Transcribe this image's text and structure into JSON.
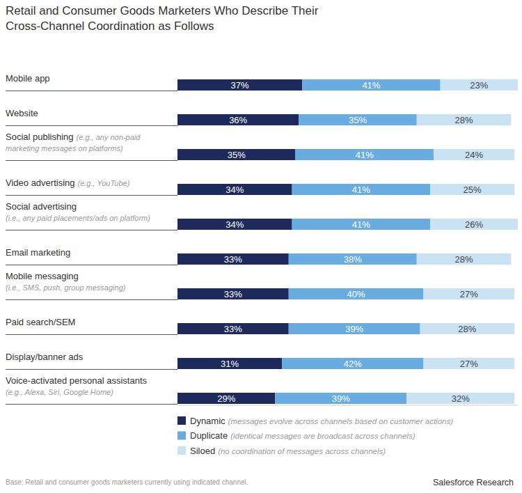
{
  "chart_data": {
    "type": "bar",
    "title": "Retail and Consumer Goods Marketers Who Describe Their Cross-Channel Coordination as Follows",
    "orientation": "horizontal",
    "stacked": true,
    "data_labels": true,
    "tick_labels": false,
    "legend": "bottom",
    "categories": [
      "Mobile app",
      "Website",
      "Social publishing",
      "Video advertising",
      "Social advertising",
      "Email marketing",
      "Mobile messaging",
      "Paid search/SEM",
      "Display/banner ads",
      "Voice-activated personal assistants"
    ],
    "xlim": [
      0,
      101
    ],
    "series": [
      {
        "name": "Dynamic",
        "color": "#1f2a5c",
        "values": [
          37,
          36,
          35,
          34,
          34,
          33,
          33,
          33,
          31,
          29
        ],
        "value_labels": [
          "37%",
          "36%",
          "35%",
          "34%",
          "34%",
          "33%",
          "33%",
          "33%",
          "31%",
          "29%"
        ]
      },
      {
        "name": "Duplicate",
        "color": "#69ace0",
        "values": [
          41,
          35,
          41,
          41,
          41,
          38,
          40,
          39,
          42,
          39
        ],
        "value_labels": [
          "41%",
          "35%",
          "41%",
          "41%",
          "41%",
          "38%",
          "40%",
          "39%",
          "42%",
          "39%"
        ]
      },
      {
        "name": "Siloed",
        "color": "#c9e2f4",
        "values": [
          23,
          28,
          24,
          25,
          26,
          28,
          27,
          28,
          27,
          32
        ],
        "value_labels": [
          "23%",
          "28%",
          "24%",
          "25%",
          "26%",
          "28%",
          "27%",
          "28%",
          "27%",
          "32%"
        ]
      }
    ],
    "annotations": [
      {
        "category": "Social publishing",
        "text": [
          "(e.g., any non-paid",
          "marketing messages on platforms)"
        ]
      },
      {
        "category": "Video advertising",
        "text": [
          "(e.g., YouTube)"
        ]
      },
      {
        "category": "Social advertising",
        "text": [
          "(i.e., any paid placements/ads on platform)"
        ]
      },
      {
        "category": "Mobile messaging",
        "text": [
          "(i.e., SMS, push, group messaging)"
        ]
      },
      {
        "category": "Voice-activated personal assistants",
        "text": [
          "(e.g., Alexa, Siri, Google Home)"
        ]
      },
      {
        "series": "Dynamic",
        "text": [
          "(messages evolve across channels based on customer actions)"
        ]
      },
      {
        "series": "Duplicate",
        "text": [
          "(identical messages are broadcast across channels)"
        ]
      },
      {
        "series": "Siloed",
        "text": [
          "(no coordination of messages across channels)"
        ]
      }
    ],
    "note": "Base: Retail and consumer goods marketers currently using indicated channel.",
    "source": "Salesforce Research"
  }
}
